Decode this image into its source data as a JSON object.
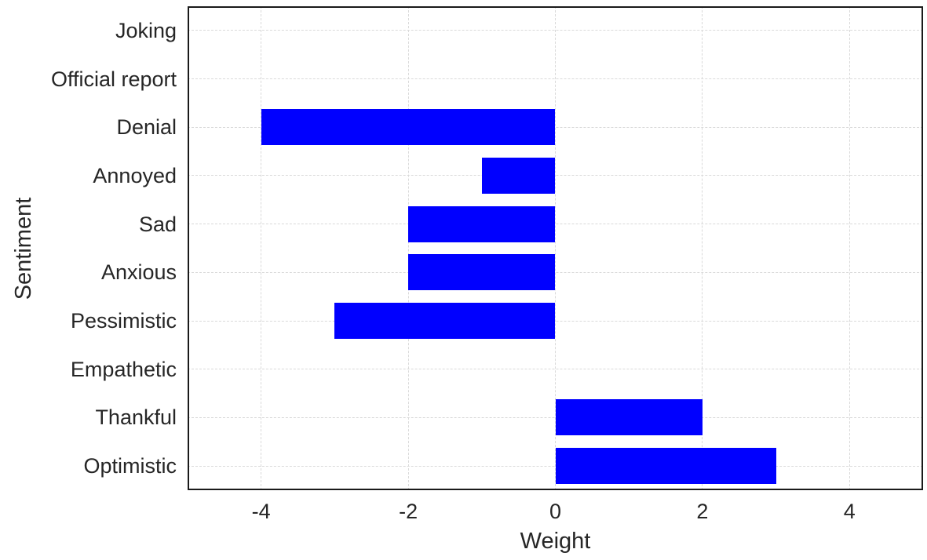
{
  "chart_data": {
    "type": "bar",
    "orientation": "horizontal",
    "title": "",
    "xlabel": "Weight",
    "ylabel": "Sentiment",
    "categories": [
      "Joking",
      "Official report",
      "Denial",
      "Annoyed",
      "Sad",
      "Anxious",
      "Pessimistic",
      "Empathetic",
      "Thankful",
      "Optimistic"
    ],
    "values": [
      0,
      0,
      -4,
      -1,
      -2,
      -2,
      -3,
      0,
      2,
      3
    ],
    "x_ticks": [
      "-4",
      "-2",
      "0",
      "2",
      "4"
    ],
    "x_tick_values": [
      -4,
      -2,
      0,
      2,
      4
    ],
    "xlim": [
      -5,
      5
    ],
    "grid": "dashed, both axes",
    "legend_position": "none",
    "bar_color": "#0000ff",
    "background_color": "#ffffff",
    "axis_color": "#1a1a1a",
    "grid_color": "#d9d9d9",
    "text_color": "#262626"
  }
}
